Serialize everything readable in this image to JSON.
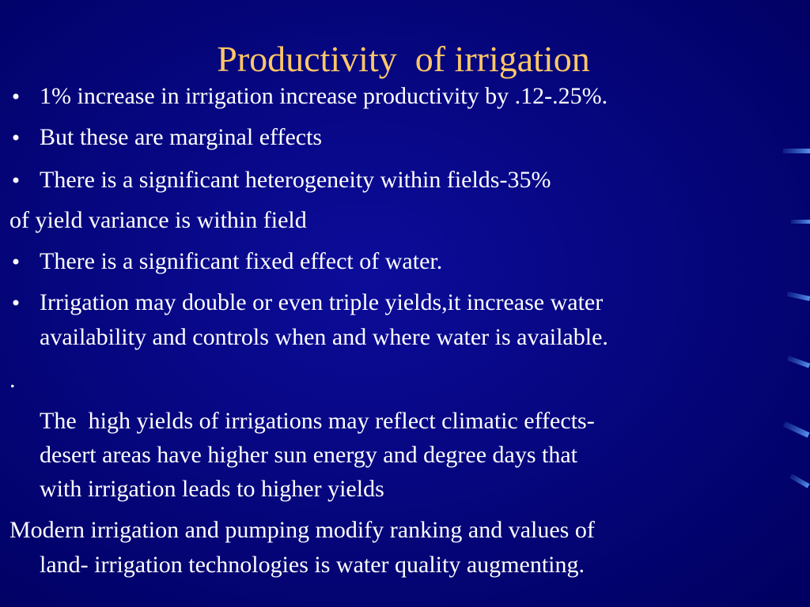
{
  "slide": {
    "title": "Productivity  of irrigation",
    "paragraphs": [
      {
        "lines": [
          "1% increase in irrigation increase productivity by .12-.25%."
        ]
      },
      {
        "lines": [
          "But these are marginal effects"
        ]
      },
      {
        "lines": [
          "There is a significant heterogeneity within fields-35%"
        ]
      },
      {
        "lines": [
          "of yield variance is within field"
        ]
      },
      {
        "lines": [
          "There is a significant fixed effect of water."
        ]
      },
      {
        "lines": [
          "Irrigation may double or even triple yields,it increase water",
          "availability and controls when and where water is available."
        ]
      },
      {
        "lines": [
          "."
        ]
      },
      {
        "lines": [
          "The  high yields of irrigations may reflect climatic effects-",
          "desert areas have higher sun energy and degree days that",
          "with irrigation leads to higher yields"
        ]
      },
      {
        "lines": [
          "Modern irrigation and pumping modify ranking and values of",
          "land- irrigation technologies is water quality augmenting."
        ]
      }
    ]
  }
}
